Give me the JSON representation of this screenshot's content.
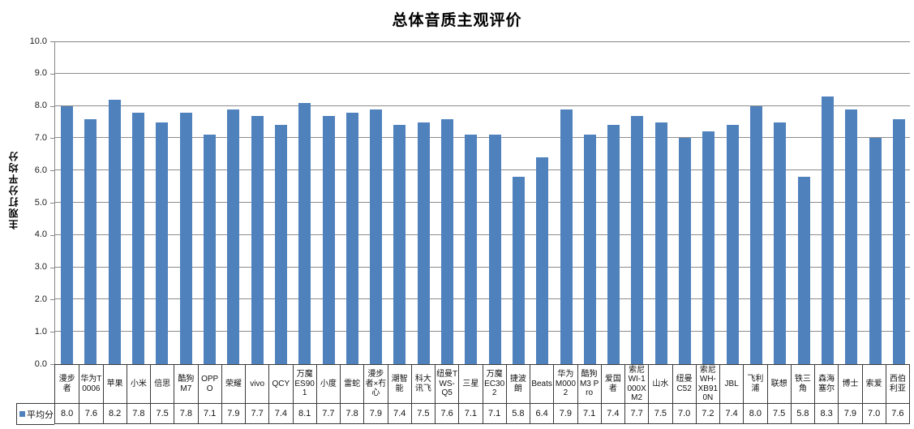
{
  "chart_data": {
    "type": "bar",
    "title": "总体音质主观评价",
    "ylabel": "主观打分平均分",
    "xlabel": "",
    "legend_label": "平均分",
    "legend_position": "bottom-left-of-data-table",
    "grid": true,
    "ylim": [
      0,
      10
    ],
    "ytick_step": 1.0,
    "ytick_decimals": 1,
    "bar_color": "#4F81BD",
    "gridline_color": "#8c8c8c",
    "categories": [
      "漫步者",
      "华为T0006",
      "苹果",
      "小米",
      "倍思",
      "酷狗M7",
      "OPPO",
      "荣耀",
      "vivo",
      "QCY",
      "万魔ES901",
      "小度",
      "雷蛇",
      "漫步者×冇心",
      "潮智能",
      "科大讯飞",
      "纽曼TWS-Q5",
      "三星",
      "万魔EC302",
      "捷波朗",
      "Beats",
      "华为M0002",
      "酷狗M3 Pro",
      "爱国者",
      "索尼WI-1000XM2",
      "山水",
      "纽曼C52",
      "索尼WH-XB910N",
      "JBL",
      "飞利浦",
      "联想",
      "铁三角",
      "森海塞尔",
      "博士",
      "索爱",
      "西伯利亚"
    ],
    "values": [
      8.0,
      7.6,
      8.2,
      7.8,
      7.5,
      7.8,
      7.1,
      7.9,
      7.7,
      7.4,
      8.1,
      7.7,
      7.8,
      7.9,
      7.4,
      7.5,
      7.6,
      7.1,
      7.1,
      5.8,
      6.4,
      7.9,
      7.1,
      7.4,
      7.7,
      7.5,
      7.0,
      7.2,
      7.4,
      8.0,
      7.5,
      5.8,
      8.3,
      7.9,
      7.0,
      7.6
    ]
  }
}
